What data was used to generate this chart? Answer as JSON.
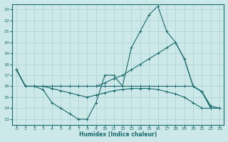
{
  "xlabel": "Humidex (Indice chaleur)",
  "background_color": "#cce8e8",
  "grid_color": "#b0d4d4",
  "line_color": "#1a6b6b",
  "xlim": [
    -0.5,
    23.5
  ],
  "ylim": [
    12.5,
    23.5
  ],
  "xticks": [
    0,
    1,
    2,
    3,
    4,
    5,
    6,
    7,
    8,
    9,
    10,
    11,
    12,
    13,
    14,
    15,
    16,
    17,
    18,
    19,
    20,
    21,
    22,
    23
  ],
  "yticks": [
    13,
    14,
    15,
    16,
    17,
    18,
    19,
    20,
    21,
    22,
    23
  ],
  "line1_x": [
    0,
    1,
    2,
    3,
    4,
    5,
    6,
    7,
    8,
    9,
    10,
    11,
    12,
    13,
    14,
    15,
    16,
    17,
    18,
    19,
    20,
    21,
    22,
    23
  ],
  "line1_y": [
    17.5,
    16,
    16,
    15.7,
    14.5,
    14.0,
    13.5,
    13.0,
    13.0,
    14.5,
    17.0,
    17.0,
    16.0,
    19.5,
    21.0,
    22.5,
    23.3,
    21.0,
    20.0,
    18.5,
    16.0,
    15.5,
    14.0,
    14.0
  ],
  "line2_x": [
    0,
    1,
    2,
    3,
    4,
    5,
    6,
    7,
    8,
    9,
    10,
    11,
    12,
    13,
    14,
    15,
    16,
    17,
    18,
    19,
    20,
    21,
    22,
    23
  ],
  "line2_y": [
    17.5,
    16,
    16,
    16,
    16,
    16,
    16,
    16,
    16,
    16,
    16.3,
    16.7,
    17.0,
    17.5,
    18.0,
    18.5,
    19.0,
    19.5,
    20.0,
    18.5,
    16.0,
    15.5,
    14.0,
    14.0
  ],
  "line3_x": [
    0,
    1,
    2,
    3,
    4,
    5,
    6,
    7,
    8,
    9,
    10,
    11,
    12,
    13,
    14,
    15,
    16,
    17,
    18,
    19,
    20,
    21,
    22,
    23
  ],
  "line3_y": [
    17.5,
    16,
    16,
    16,
    15.8,
    15.6,
    15.4,
    15.2,
    15.0,
    15.2,
    15.4,
    15.6,
    15.7,
    15.8,
    15.8,
    15.8,
    15.7,
    15.5,
    15.3,
    15.0,
    14.5,
    14.0,
    14.0,
    14.0
  ],
  "line4_x": [
    0,
    1,
    2,
    3,
    4,
    5,
    6,
    7,
    8,
    9,
    10,
    11,
    12,
    13,
    14,
    15,
    16,
    17,
    18,
    19,
    20,
    21,
    22,
    23
  ],
  "line4_y": [
    17.5,
    16,
    16,
    16,
    16,
    16,
    16,
    16,
    16,
    16,
    16,
    16,
    16,
    16,
    16,
    16,
    16,
    16,
    16,
    16,
    16,
    15.5,
    14.2,
    14.0
  ]
}
